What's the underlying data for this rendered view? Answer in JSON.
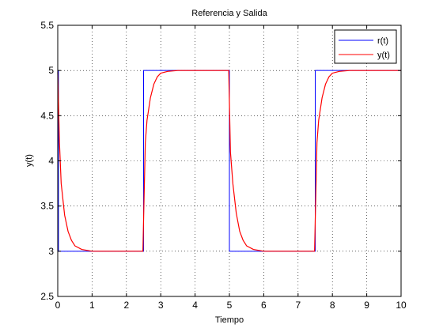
{
  "chart_data": {
    "type": "line",
    "title": "Referencia y Salida",
    "xlabel": "Tiempo",
    "ylabel": "y(t)",
    "xlim": [
      0,
      10
    ],
    "ylim": [
      2.5,
      5.5
    ],
    "xticks": [
      0,
      1,
      2,
      3,
      4,
      5,
      6,
      7,
      8,
      9,
      10
    ],
    "yticks": [
      2.5,
      3,
      3.5,
      4,
      4.5,
      5,
      5.5
    ],
    "xtick_labels": [
      "0",
      "1",
      "2",
      "3",
      "4",
      "5",
      "6",
      "7",
      "8",
      "9",
      "10"
    ],
    "ytick_labels": [
      "2.5",
      "3",
      "3.5",
      "4",
      "4.5",
      "5",
      "5.5"
    ],
    "grid": true,
    "legend_position": "top-right",
    "series": [
      {
        "name": "r(t)",
        "color": "#0000ff",
        "x": [
          0,
          0.02,
          0.02,
          2.5,
          2.5,
          5.0,
          5.0,
          7.5,
          7.5,
          10
        ],
        "y": [
          5,
          5,
          3,
          3,
          5,
          5,
          3,
          3,
          5,
          5
        ]
      },
      {
        "name": "y(t)",
        "color": "#ff0000",
        "x": [
          0,
          0.05,
          0.1,
          0.2,
          0.3,
          0.4,
          0.5,
          0.7,
          1.0,
          2.48,
          2.55,
          2.6,
          2.7,
          2.8,
          2.9,
          3.0,
          3.2,
          3.5,
          4.98,
          5.03,
          5.1,
          5.2,
          5.3,
          5.4,
          5.5,
          5.7,
          6.0,
          7.48,
          7.55,
          7.6,
          7.7,
          7.8,
          7.9,
          8.0,
          8.2,
          8.5,
          10.0
        ],
        "y": [
          4.98,
          4.2,
          3.75,
          3.4,
          3.22,
          3.12,
          3.06,
          3.02,
          3.0,
          3.0,
          4.2,
          4.45,
          4.7,
          4.85,
          4.93,
          4.97,
          4.99,
          5.0,
          5.0,
          4.1,
          3.75,
          3.42,
          3.22,
          3.12,
          3.06,
          3.02,
          3.0,
          3.0,
          4.2,
          4.45,
          4.7,
          4.85,
          4.93,
          4.97,
          4.99,
          5.0,
          5.0
        ]
      }
    ]
  }
}
